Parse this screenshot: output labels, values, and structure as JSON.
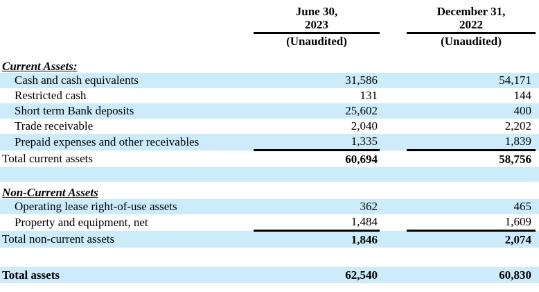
{
  "colors": {
    "highlight": "#ccebfb",
    "rule": "#000000"
  },
  "header": {
    "col1": {
      "line1": "June 30,",
      "line2": "2023",
      "note": "(Unaudited)"
    },
    "col2": {
      "line1": "December 31,",
      "line2": "2022",
      "note": "(Unaudited)"
    }
  },
  "sections": {
    "current_heading": "Current Assets:",
    "noncurrent_heading": "Non-Current Assets"
  },
  "rows": [
    {
      "label": "Cash and cash equivalents",
      "v2023": "31,586",
      "v2022": "54,171"
    },
    {
      "label": "Restricted cash",
      "v2023": "131",
      "v2022": "144"
    },
    {
      "label": "Short term Bank deposits",
      "v2023": "25,602",
      "v2022": "400"
    },
    {
      "label": "Trade receivable",
      "v2023": "2,040",
      "v2022": "2,202"
    },
    {
      "label": "Prepaid expenses and other receivables",
      "v2023": "1,335",
      "v2022": "1,839"
    },
    {
      "label": "Operating lease right-of-use assets",
      "v2023": "362",
      "v2022": "465"
    },
    {
      "label": "Property and equipment, net",
      "v2023": "1,484",
      "v2022": "1,609"
    }
  ],
  "totals": {
    "current": {
      "label": "Total current assets",
      "v2023": "60,694",
      "v2022": "58,756"
    },
    "noncurrent": {
      "label": "Total non-current assets",
      "v2023": "1,846",
      "v2022": "2,074"
    },
    "assets": {
      "label": "Total assets",
      "v2023": "62,540",
      "v2022": "60,830"
    }
  }
}
